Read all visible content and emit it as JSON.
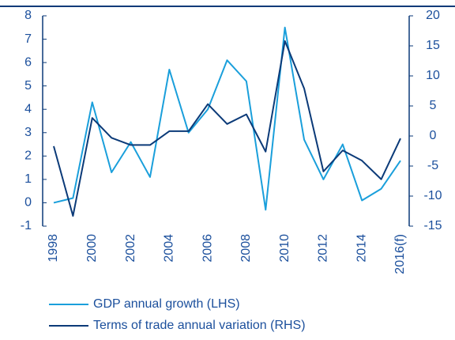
{
  "chart_data": {
    "type": "line",
    "categories": [
      "1998",
      null,
      "2000",
      null,
      "2002",
      null,
      "2004",
      null,
      "2006",
      null,
      "2008",
      null,
      "2010",
      null,
      "2012",
      null,
      "2014",
      null,
      "2016(f)"
    ],
    "series": [
      {
        "name": "GDP annual growth (LHS)",
        "color": "#1a9fdb",
        "axis": "y",
        "values": [
          0.0,
          0.2,
          4.3,
          1.3,
          2.6,
          1.1,
          5.7,
          3.0,
          4.0,
          6.1,
          5.2,
          -0.3,
          7.5,
          2.7,
          1.0,
          2.5,
          0.1,
          0.6,
          1.8
        ]
      },
      {
        "name": "Terms of trade annual variation (RHS)",
        "color": "#0b3a78",
        "axis": "y2",
        "values": [
          -1.7,
          -13.3,
          3.0,
          -0.3,
          -1.5,
          -1.5,
          0.8,
          0.8,
          5.3,
          2.0,
          3.6,
          -2.6,
          15.8,
          7.9,
          -5.9,
          -2.4,
          -4.1,
          -7.2,
          -0.4
        ]
      }
    ],
    "ylim": [
      -1,
      8
    ],
    "yticks": [
      -1,
      0,
      1,
      2,
      3,
      4,
      5,
      6,
      7,
      8
    ],
    "y2lim": [
      -15,
      20
    ],
    "y2ticks": [
      -15,
      -10,
      -5,
      0,
      5,
      10,
      15,
      20
    ],
    "legend": "bottom"
  }
}
